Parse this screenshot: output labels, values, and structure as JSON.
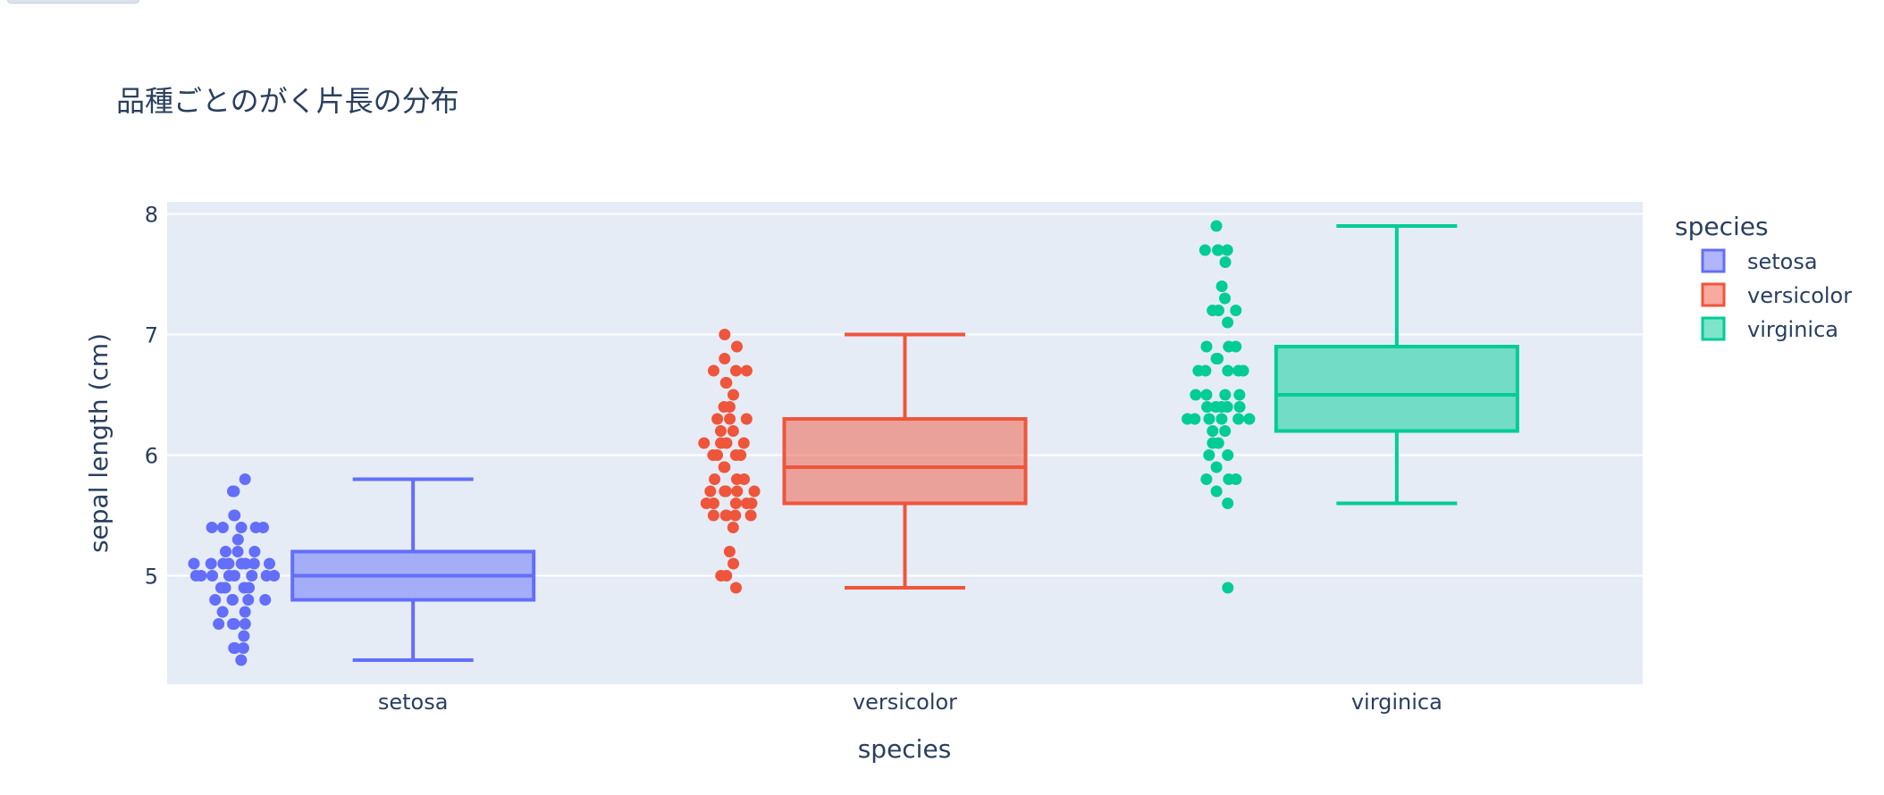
{
  "chart_data": {
    "type": "box",
    "title": "品種ごとのがく片長の分布",
    "xlabel": "species",
    "ylabel": "sepal length (cm)",
    "ylim": [
      4.1,
      8.1
    ],
    "yticks": [
      5,
      6,
      7,
      8
    ],
    "categories": [
      "setosa",
      "versicolor",
      "virginica"
    ],
    "grid": true,
    "legend": {
      "title": "species",
      "placement": "right"
    },
    "series": [
      {
        "name": "setosa",
        "color": "#636efa",
        "stats": {
          "min": 4.3,
          "q1": 4.8,
          "median": 5.0,
          "q3": 5.2,
          "max": 5.8
        },
        "points": [
          5.1,
          4.9,
          4.7,
          4.6,
          5.0,
          5.4,
          4.6,
          5.0,
          4.4,
          4.9,
          5.4,
          4.8,
          4.8,
          4.3,
          5.8,
          5.7,
          5.4,
          5.1,
          5.7,
          5.1,
          5.4,
          5.1,
          4.6,
          5.1,
          4.8,
          5.0,
          5.0,
          5.2,
          5.2,
          4.7,
          4.8,
          5.4,
          5.2,
          5.5,
          4.9,
          5.0,
          5.5,
          4.9,
          4.4,
          5.1,
          5.0,
          4.5,
          4.4,
          5.0,
          5.1,
          4.8,
          5.1,
          4.6,
          5.3,
          5.0
        ]
      },
      {
        "name": "versicolor",
        "color": "#ef553b",
        "stats": {
          "min": 4.9,
          "q1": 5.6,
          "median": 5.9,
          "q3": 6.3,
          "max": 7.0
        },
        "points": [
          7.0,
          6.4,
          6.9,
          5.5,
          6.5,
          5.7,
          6.3,
          4.9,
          6.6,
          5.2,
          5.0,
          5.9,
          6.0,
          6.1,
          5.6,
          6.7,
          5.6,
          5.8,
          6.2,
          5.6,
          5.9,
          6.1,
          6.3,
          6.1,
          6.4,
          6.6,
          6.8,
          6.7,
          6.0,
          5.7,
          5.5,
          5.5,
          5.8,
          6.0,
          5.4,
          6.0,
          6.7,
          6.3,
          5.6,
          5.5,
          5.5,
          6.1,
          5.8,
          5.0,
          5.6,
          5.7,
          5.7,
          6.2,
          5.1,
          5.7
        ]
      },
      {
        "name": "virginica",
        "color": "#00cc96",
        "stats": {
          "min": 5.6,
          "q1": 6.2,
          "median": 6.5,
          "q3": 6.9,
          "max": 7.9
        },
        "points": [
          6.3,
          5.8,
          7.1,
          6.3,
          6.5,
          7.6,
          4.9,
          7.3,
          6.7,
          7.2,
          6.5,
          6.4,
          6.8,
          5.7,
          5.8,
          6.4,
          6.5,
          7.7,
          7.7,
          6.0,
          6.9,
          5.6,
          7.7,
          6.3,
          6.7,
          7.2,
          6.2,
          6.1,
          6.4,
          7.2,
          7.4,
          7.9,
          6.4,
          6.3,
          6.1,
          7.7,
          6.3,
          6.4,
          6.0,
          6.9,
          6.7,
          6.9,
          5.8,
          6.8,
          6.7,
          6.7,
          6.3,
          6.5,
          6.2,
          5.9
        ]
      }
    ]
  }
}
